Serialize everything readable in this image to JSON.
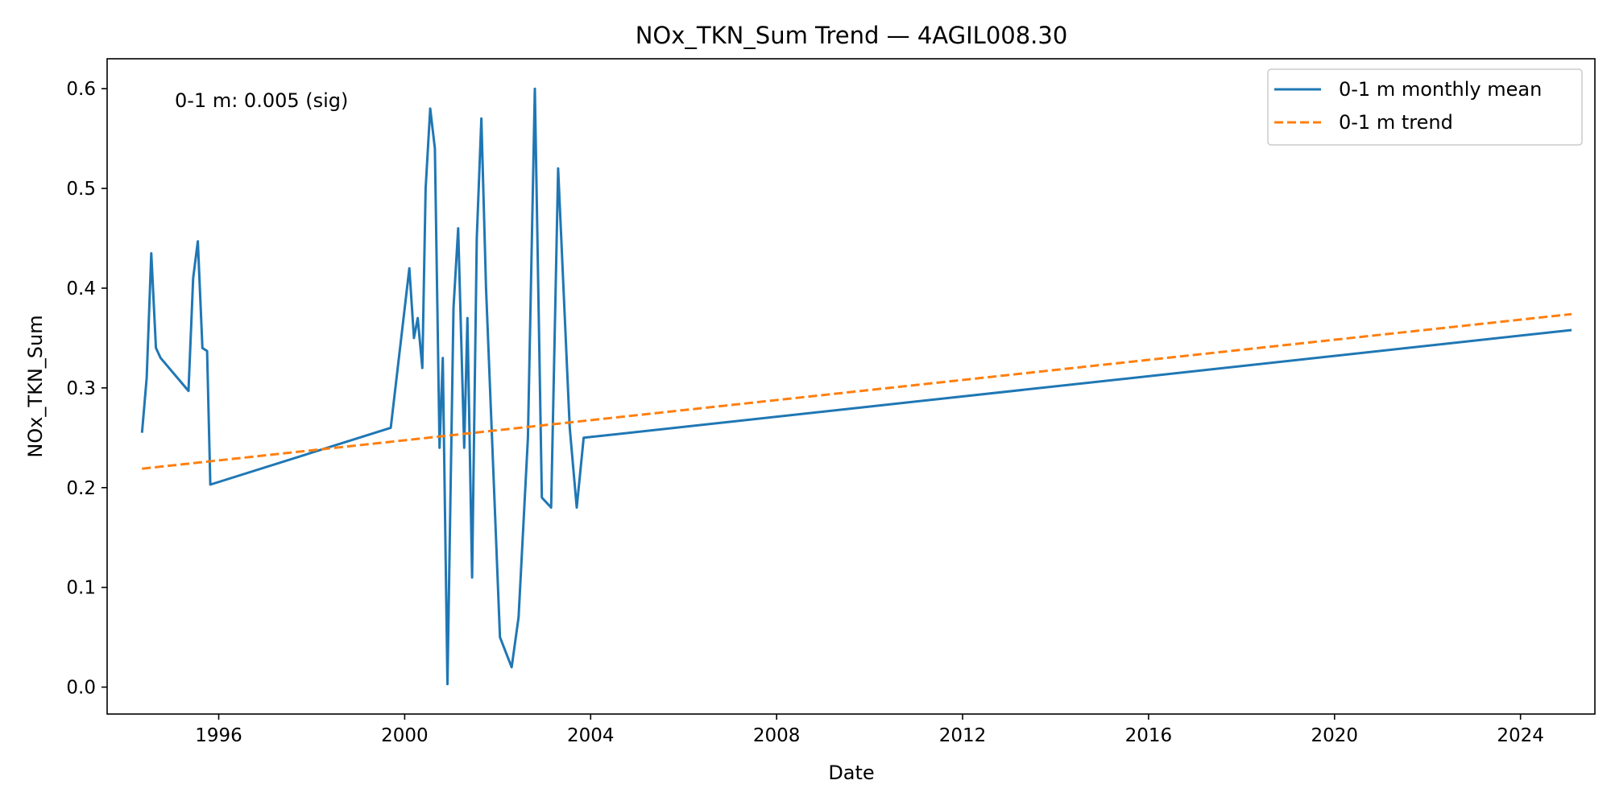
{
  "chart_data": {
    "type": "line",
    "title": "NOx_TKN_Sum Trend — 4AGIL008.30",
    "xlabel": "Date",
    "ylabel": "NOx_TKN_Sum",
    "xlim": [
      1993.6,
      2025.6
    ],
    "ylim": [
      -0.027,
      0.63
    ],
    "x_ticks": [
      1996,
      2000,
      2004,
      2008,
      2012,
      2016,
      2020,
      2024
    ],
    "x_tick_labels": [
      "1996",
      "2000",
      "2004",
      "2008",
      "2012",
      "2016",
      "2020",
      "2024"
    ],
    "y_ticks": [
      0.0,
      0.1,
      0.2,
      0.3,
      0.4,
      0.5,
      0.6
    ],
    "y_tick_labels": [
      "0.0",
      "0.1",
      "0.2",
      "0.3",
      "0.4",
      "0.5",
      "0.6"
    ],
    "annotation": "0-1 m: 0.005 (sig)",
    "legend_position": "top-right",
    "grid": false,
    "series": [
      {
        "name": "0-1 m monthly mean",
        "style": "solid",
        "color": "#1f77b4",
        "points": [
          [
            1994.35,
            0.255
          ],
          [
            1994.45,
            0.31
          ],
          [
            1994.55,
            0.435
          ],
          [
            1994.65,
            0.34
          ],
          [
            1994.75,
            0.33
          ],
          [
            1995.35,
            0.297
          ],
          [
            1995.45,
            0.41
          ],
          [
            1995.55,
            0.447
          ],
          [
            1995.65,
            0.34
          ],
          [
            1995.75,
            0.337
          ],
          [
            1995.82,
            0.203
          ],
          [
            1999.7,
            0.26
          ],
          [
            2000.1,
            0.42
          ],
          [
            2000.2,
            0.35
          ],
          [
            2000.28,
            0.37
          ],
          [
            2000.38,
            0.32
          ],
          [
            2000.45,
            0.5
          ],
          [
            2000.55,
            0.58
          ],
          [
            2000.65,
            0.54
          ],
          [
            2000.75,
            0.24
          ],
          [
            2000.82,
            0.33
          ],
          [
            2000.92,
            0.003
          ],
          [
            2001.05,
            0.38
          ],
          [
            2001.15,
            0.46
          ],
          [
            2001.28,
            0.24
          ],
          [
            2001.35,
            0.37
          ],
          [
            2001.45,
            0.11
          ],
          [
            2001.55,
            0.45
          ],
          [
            2001.65,
            0.57
          ],
          [
            2001.75,
            0.4
          ],
          [
            2002.05,
            0.05
          ],
          [
            2002.3,
            0.02
          ],
          [
            2002.45,
            0.07
          ],
          [
            2002.65,
            0.25
          ],
          [
            2002.8,
            0.6
          ],
          [
            2002.95,
            0.19
          ],
          [
            2003.15,
            0.18
          ],
          [
            2003.3,
            0.52
          ],
          [
            2003.55,
            0.26
          ],
          [
            2003.7,
            0.18
          ],
          [
            2003.85,
            0.25
          ],
          [
            2025.1,
            0.358
          ]
        ]
      },
      {
        "name": "0-1 m trend",
        "style": "dashed",
        "color": "#ff7f0e",
        "points": [
          [
            1994.35,
            0.219
          ],
          [
            2025.1,
            0.374
          ]
        ]
      }
    ]
  }
}
